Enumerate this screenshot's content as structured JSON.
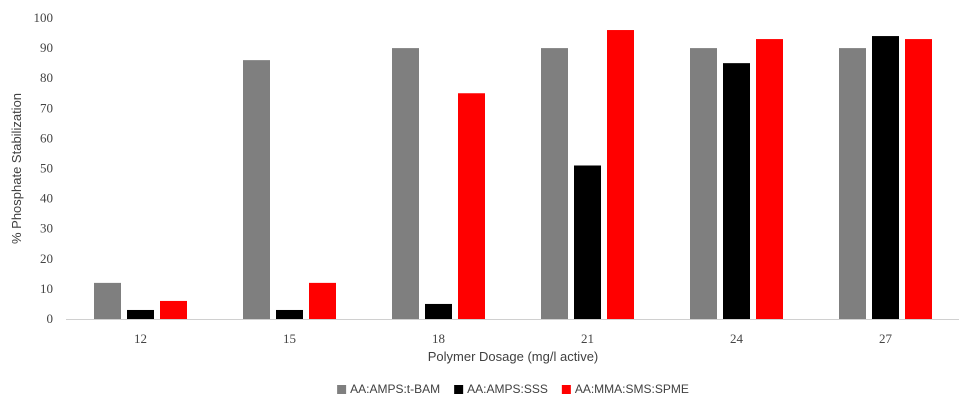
{
  "chart_data": {
    "type": "bar",
    "title": "",
    "xlabel": "Polymer Dosage (mg/l active)",
    "ylabel": "% Phosphate Stabilization",
    "ylim": [
      0,
      100
    ],
    "yticks": [
      "0",
      "10",
      "20",
      "30",
      "40",
      "50",
      "60",
      "70",
      "80",
      "90",
      "100"
    ],
    "categories": [
      "12",
      "15",
      "18",
      "21",
      "24",
      "27"
    ],
    "grid": false,
    "legend_position": "bottom",
    "series": [
      {
        "name": "AA:AMPS:t-BAM",
        "color": "#7f7f7f",
        "values": [
          12,
          86,
          90,
          90,
          90,
          90
        ]
      },
      {
        "name": "AA:AMPS:SSS",
        "color": "#000000",
        "values": [
          3,
          3,
          5,
          51,
          85,
          94
        ]
      },
      {
        "name": "AA:MMA:SMS:SPME",
        "color": "#ff0000",
        "values": [
          6,
          12,
          75,
          96,
          93,
          93
        ]
      }
    ]
  }
}
